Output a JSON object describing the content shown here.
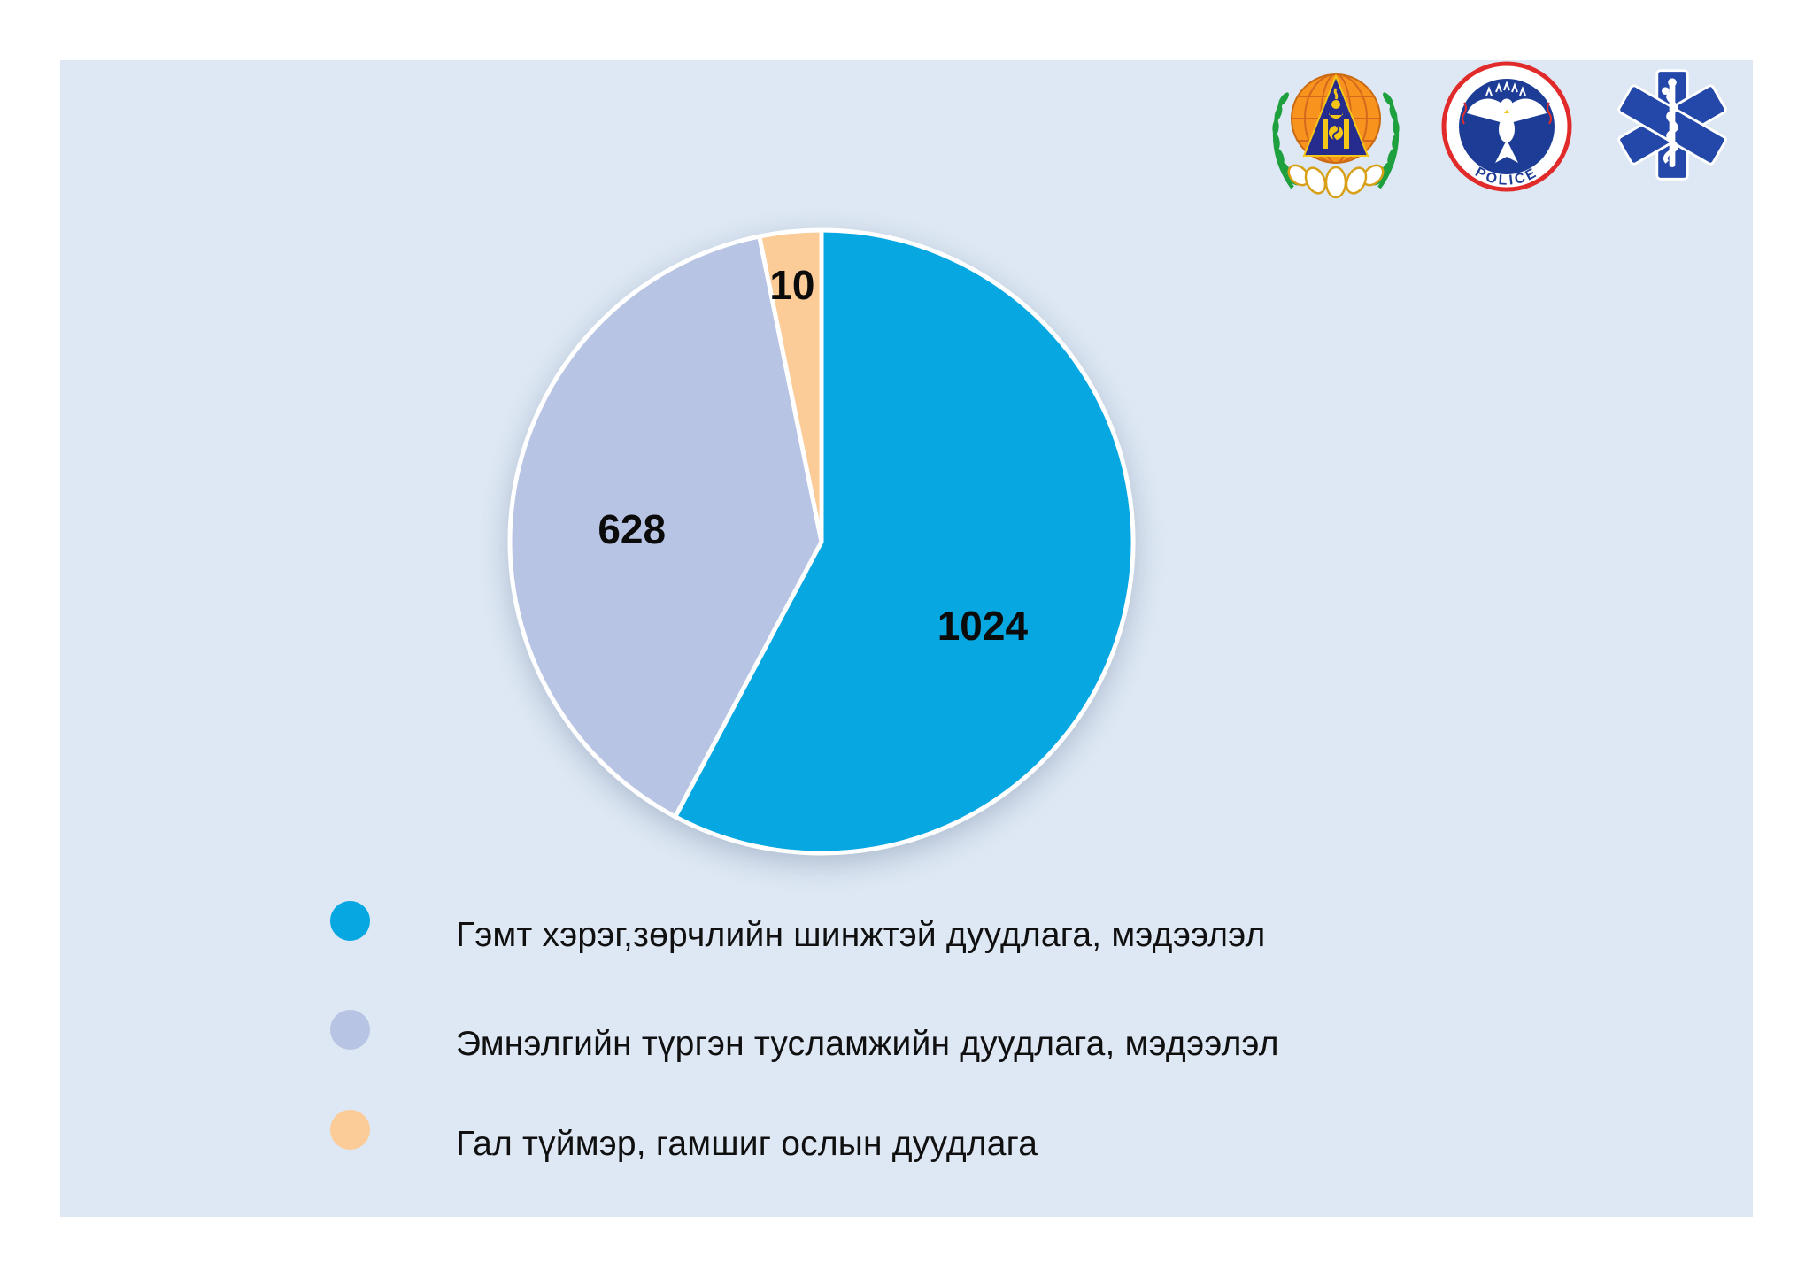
{
  "page": {
    "background_color": "#ffffff",
    "panel_color": "#dee8f4"
  },
  "logos": [
    {
      "name": "emergency-management-logo"
    },
    {
      "name": "police-logo",
      "label": "POLICE"
    },
    {
      "name": "star-of-life-logo"
    }
  ],
  "chart_data": {
    "type": "pie",
    "title": "",
    "legend_position": "bottom-left",
    "total": 1662,
    "slices": [
      {
        "label": "Гэмт хэрэг,зөрчлийн шинжтэй дуудлага, мэдээлэл",
        "value": 1024,
        "color": "#07a7e2",
        "start_angle": 0,
        "end_angle": 208,
        "label_angle": 117.6,
        "label_r": 0.583
      },
      {
        "label": "Эмнэлгийн түргэн тусламжийн дуудлага, мэдээлэл",
        "value": 628,
        "color": "#b8c4e3",
        "start_angle": 208,
        "end_angle": 348.5,
        "label_angle": 273.7,
        "label_r": 0.61
      },
      {
        "label": "Гал түймэр, гамшиг ослын дуудлага",
        "value": 10,
        "color": "#fbcb98",
        "start_angle": 348.5,
        "end_angle": 360,
        "label_angle": 353.5,
        "label_r": 0.83
      }
    ]
  }
}
